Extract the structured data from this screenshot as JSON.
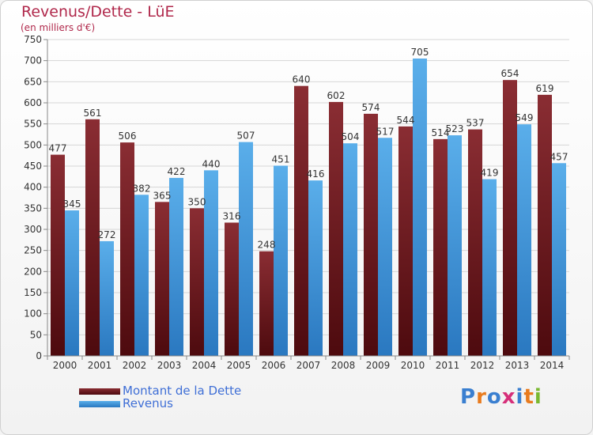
{
  "header": {
    "title": "Revenus/Dette - LüE",
    "subtitle": "(en milliers d'€)"
  },
  "chart_data": {
    "type": "bar",
    "categories": [
      "2000",
      "2001",
      "2002",
      "2003",
      "2004",
      "2005",
      "2006",
      "2007",
      "2008",
      "2009",
      "2010",
      "2011",
      "2012",
      "2013",
      "2014"
    ],
    "series": [
      {
        "name": "Montant de la Dette",
        "color": "#7a1e24",
        "values": [
          477,
          561,
          506,
          365,
          350,
          316,
          248,
          640,
          602,
          574,
          544,
          514,
          537,
          654,
          619
        ]
      },
      {
        "name": "Revenus",
        "color": "#4a9fe0",
        "values": [
          345,
          272,
          382,
          422,
          440,
          507,
          451,
          416,
          504,
          517,
          705,
          523,
          419,
          549,
          457
        ]
      }
    ],
    "ylim": [
      0,
      750
    ],
    "yticks": [
      0,
      50,
      100,
      150,
      200,
      250,
      300,
      350,
      400,
      450,
      500,
      550,
      600,
      650,
      700,
      750
    ],
    "grid": true,
    "legend": "bottom-left"
  },
  "legend": {
    "items": [
      {
        "label": "Montant de la Dette",
        "color": "#7a1e24"
      },
      {
        "label": "Revenus",
        "color": "#4a9fe0"
      }
    ]
  },
  "brand": {
    "letters": [
      "P",
      "r",
      "o",
      "x",
      "i",
      "t",
      "i"
    ],
    "colors": [
      "#3a7fd0",
      "#e87b1e",
      "#3a7fd0",
      "#d62f7a",
      "#3a7fd0",
      "#e87b1e",
      "#7ab830"
    ]
  }
}
